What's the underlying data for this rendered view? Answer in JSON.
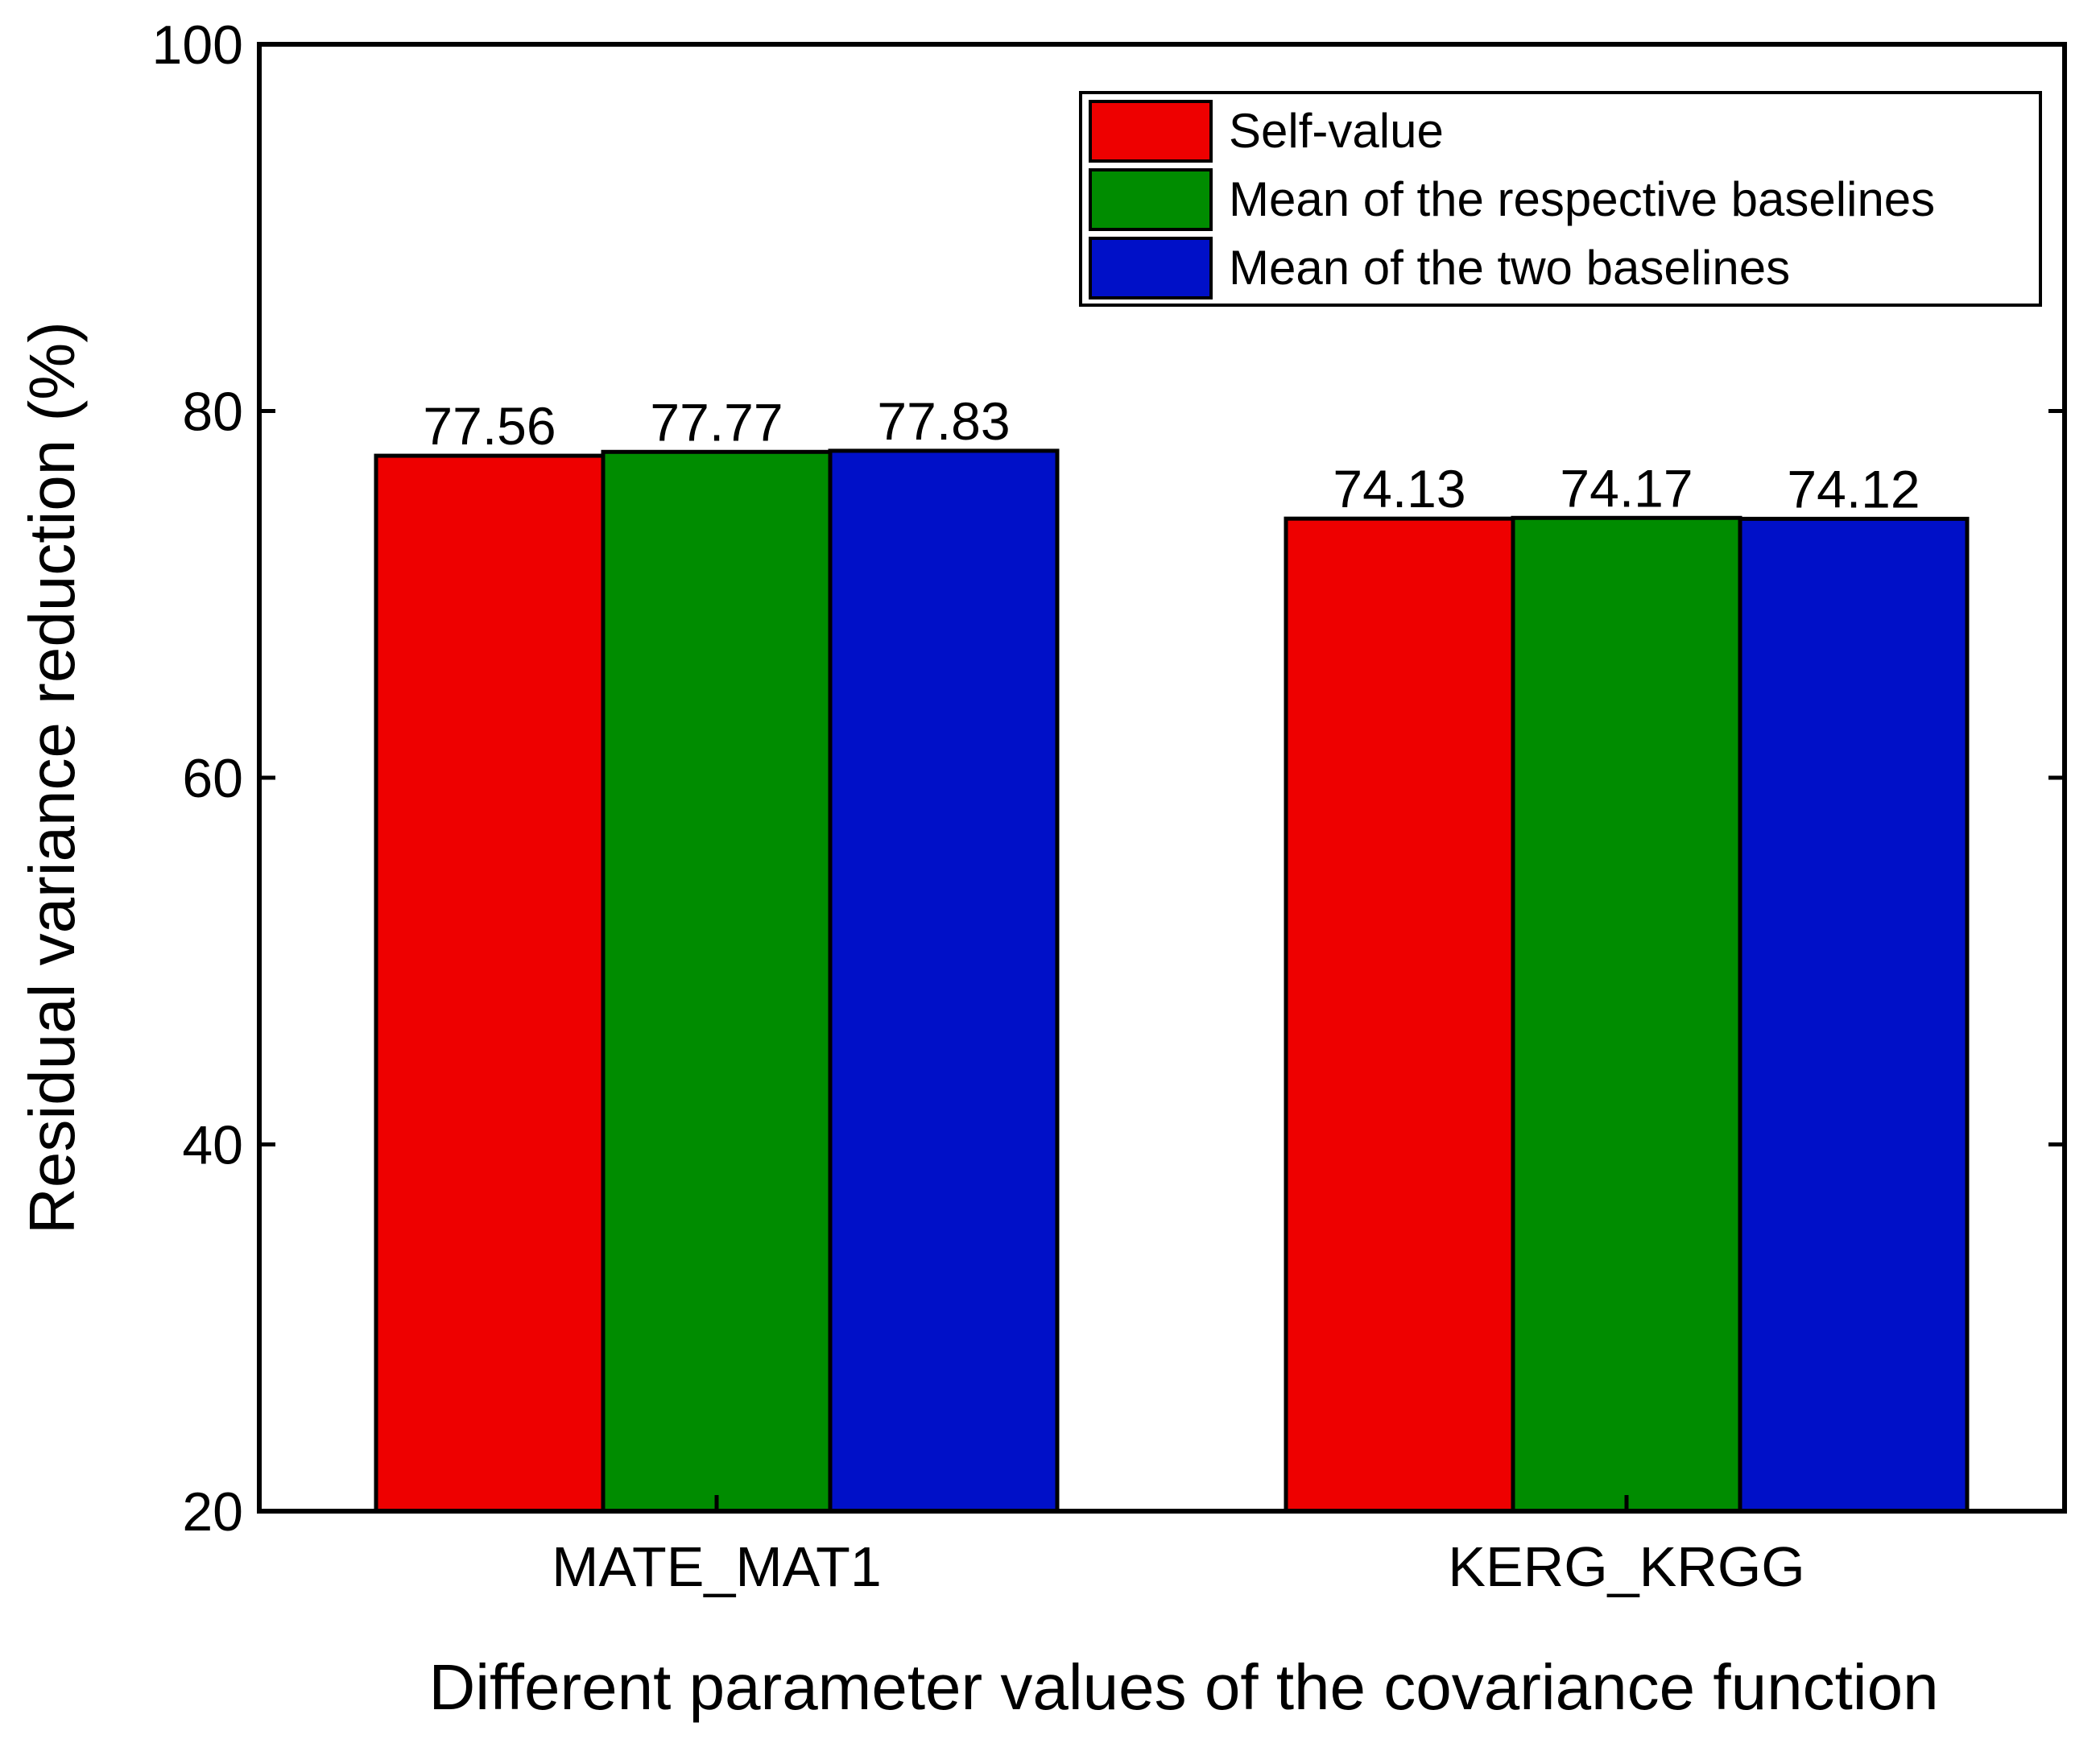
{
  "chart_data": {
    "type": "bar",
    "title": "",
    "xlabel": "Different parameter values of the covariance function",
    "ylabel": "Residual variance reduction (%)",
    "ylim": [
      20,
      100
    ],
    "yticks": [
      20,
      40,
      60,
      80,
      100
    ],
    "yticks_text": [
      "20",
      "40",
      "60",
      "80",
      "100"
    ],
    "categories": [
      "MATE_MAT1",
      "KERG_KRGG"
    ],
    "series": [
      {
        "name": "Self-value",
        "color": "#ee0000",
        "values": [
          77.56,
          74.13
        ],
        "labels": [
          "77.56",
          "74.13"
        ]
      },
      {
        "name": "Mean of the respective baselines",
        "color": "#008c00",
        "values": [
          77.77,
          74.17
        ],
        "labels": [
          "77.77",
          "74.17"
        ]
      },
      {
        "name": "Mean of the two baselines",
        "color": "#0010c8",
        "values": [
          77.83,
          74.12
        ],
        "labels": [
          "77.83",
          "74.12"
        ]
      }
    ],
    "legend_position": "top-right",
    "grid": false
  }
}
